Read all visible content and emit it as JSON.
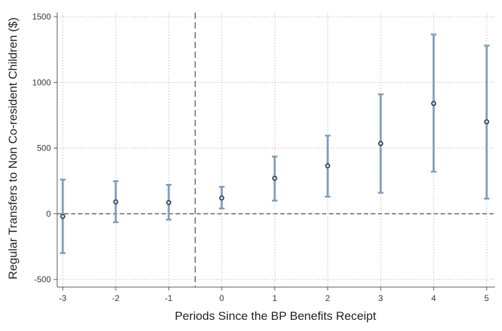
{
  "chart_data": {
    "type": "scatter",
    "title": "",
    "xlabel": "Periods Since the BP Benefits Receipt",
    "ylabel": "Regular Transfers to Non Co-resident Children ($)",
    "x": [
      -3,
      -2,
      -1,
      0,
      1,
      2,
      3,
      4,
      5
    ],
    "x_ticks": [
      "-3",
      "-2",
      "-1",
      "0",
      "1",
      "2",
      "3",
      "4",
      "5"
    ],
    "xlim": [
      -3,
      5
    ],
    "ylim": [
      -500,
      1500
    ],
    "y_ticks": [
      -500,
      0,
      500,
      1000,
      1500
    ],
    "series": [
      {
        "estimate": [
          -20,
          90,
          85,
          120,
          270,
          365,
          535,
          840,
          700
        ],
        "ci_low": [
          -300,
          -65,
          -45,
          40,
          100,
          130,
          160,
          320,
          115
        ],
        "ci_high": [
          260,
          248,
          220,
          205,
          435,
          595,
          910,
          1365,
          1280
        ]
      }
    ],
    "reference_lines": {
      "horizontal_y": 0,
      "vertical_x": -0.5
    },
    "grid": true,
    "colors": {
      "point": "#1f3550",
      "ci": "#7f9cb8",
      "reference": "#666666",
      "grid": "#b8b8b8"
    }
  }
}
